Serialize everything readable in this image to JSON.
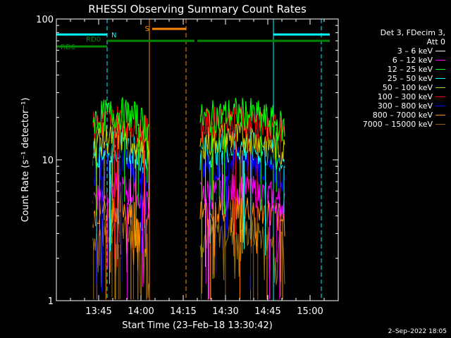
{
  "chart_data": {
    "type": "line",
    "title": "RHESSI Observing Summary Count Rates",
    "xlabel": "Start Time (23–Feb–18 13:30:42)",
    "ylabel": "Count Rate (s⁻¹ detector⁻¹)",
    "yscale": "log",
    "ylim": [
      1,
      100
    ],
    "xlim": [
      "13:30",
      "15:10"
    ],
    "x_ticks": [
      "13:45",
      "14:00",
      "14:15",
      "14:30",
      "14:45",
      "15:00"
    ],
    "y_ticks": [
      "1",
      "10",
      "100"
    ],
    "legend_header": [
      "Det 3, FDecim 3,",
      "Att 0"
    ],
    "legend_placement": "right, outside",
    "grid": false,
    "series": [
      {
        "name": "3 – 6 keV",
        "color": "#000000",
        "level": 12.0
      },
      {
        "name": "6 – 12 keV",
        "color": "#ff00ff",
        "level": 5.5
      },
      {
        "name": "12 – 25 keV",
        "color": "#00ff00",
        "level": 19.0
      },
      {
        "name": "25 – 50 keV",
        "color": "#00ffff",
        "level": 11.0
      },
      {
        "name": "50 – 100 keV",
        "color": "#cccc00",
        "level": 13.0
      },
      {
        "name": "100 – 300 keV",
        "color": "#ff0000",
        "level": 17.0
      },
      {
        "name": "300 – 800 keV",
        "color": "#0000ff",
        "level": 8.5
      },
      {
        "name": "800 – 7000 keV",
        "color": "#ff8800",
        "level": 4.2
      },
      {
        "name": "7000 – 15000 keV",
        "color": "#8b6914",
        "level": 2.8
      }
    ],
    "data_intervals": [
      [
        "13:43",
        "14:03"
      ],
      [
        "14:21",
        "14:51"
      ]
    ],
    "annotations": [
      {
        "label": "N",
        "color": "#00ffff",
        "type": "night",
        "intervals": [
          [
            "13:30",
            "13:48"
          ],
          [
            "14:47",
            "15:07"
          ]
        ]
      },
      {
        "label": "S",
        "color": "#ff8800",
        "type": "SAA",
        "intervals": [
          [
            "14:04",
            "14:16"
          ]
        ]
      },
      {
        "label": "RD0",
        "color": "#008800",
        "type": "decimation",
        "intervals": [
          [
            "13:48",
            "14:19"
          ],
          [
            "14:20",
            "14:22"
          ],
          [
            "14:22",
            "15:07"
          ]
        ]
      },
      {
        "label": "RD6",
        "color": "#008800",
        "type": "decimation",
        "intervals": [
          [
            "13:30",
            "13:48"
          ]
        ]
      }
    ],
    "vlines": [
      {
        "time": "13:48",
        "color": "#00ffff",
        "style": "dashed"
      },
      {
        "time": "14:03",
        "color": "#ff8800",
        "style": "solid"
      },
      {
        "time": "14:16",
        "color": "#ff8800",
        "style": "dashed"
      },
      {
        "time": "14:47",
        "color": "#00ffff",
        "style": "solid"
      },
      {
        "time": "15:04",
        "color": "#00ffff",
        "style": "dashed"
      }
    ]
  },
  "stamp": "2–Sep–2022 18:05"
}
